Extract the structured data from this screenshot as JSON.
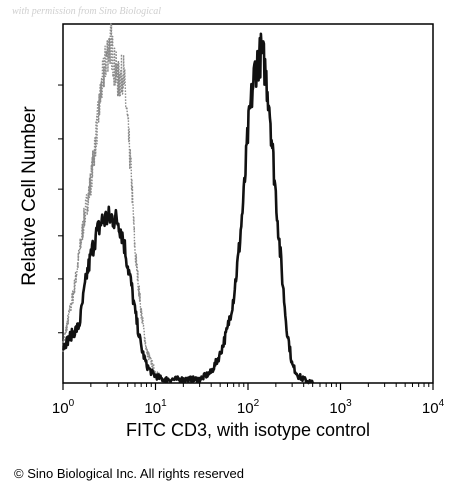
{
  "watermark": "with permission from Sino Biological",
  "copyright": "© Sino Biological Inc. All rights reserved",
  "chart_data": {
    "type": "line",
    "title": "",
    "xlabel": "FITC CD3, with isotype control",
    "ylabel": "Relative Cell Number",
    "x_scale": "log",
    "xlim": [
      1,
      10000
    ],
    "ylim": [
      0,
      100
    ],
    "grid": false,
    "x_ticks": [
      {
        "base": "10",
        "exp": "0",
        "value": 1
      },
      {
        "base": "10",
        "exp": "1",
        "value": 10
      },
      {
        "base": "10",
        "exp": "2",
        "value": 100
      },
      {
        "base": "10",
        "exp": "3",
        "value": 1000
      },
      {
        "base": "10",
        "exp": "4",
        "value": 10000
      }
    ],
    "y_minor_ticks": [
      14,
      29,
      41,
      54,
      68,
      83
    ],
    "series": [
      {
        "style": "dotted",
        "color": "#8a8a8a",
        "x": [
          1,
          1.1,
          1.3,
          1.5,
          1.7,
          2.0,
          2.3,
          2.6,
          3.0,
          3.3,
          3.6,
          4.0,
          4.5,
          5.0,
          5.5,
          6.0,
          7.0,
          8.0,
          10,
          12
        ],
        "y": [
          10,
          16,
          25,
          36,
          46,
          56,
          70,
          82,
          92,
          95,
          88,
          84,
          87,
          72,
          57,
          37,
          20,
          9,
          3,
          1
        ]
      },
      {
        "style": "solid",
        "color": "#111111",
        "x": [
          1,
          1.2,
          1.5,
          1.8,
          2.2,
          2.6,
          3.0,
          3.5,
          4.0,
          4.5,
          5.0,
          5.5,
          6.0,
          7.0,
          8.0,
          9.0,
          10,
          12,
          15,
          20,
          30,
          40,
          50,
          60,
          70,
          80,
          90,
          100,
          110,
          120,
          130,
          140,
          150,
          170,
          190,
          220,
          260,
          300,
          350,
          400,
          500
        ],
        "y": [
          10,
          13,
          16,
          30,
          40,
          45,
          46,
          46,
          45,
          40,
          33,
          27,
          20,
          10,
          5,
          3,
          2,
          1,
          1,
          1,
          1,
          3,
          8,
          15,
          24,
          37,
          52,
          70,
          80,
          88,
          90,
          92,
          89,
          78,
          60,
          38,
          16,
          5,
          2,
          1,
          0
        ]
      }
    ]
  }
}
